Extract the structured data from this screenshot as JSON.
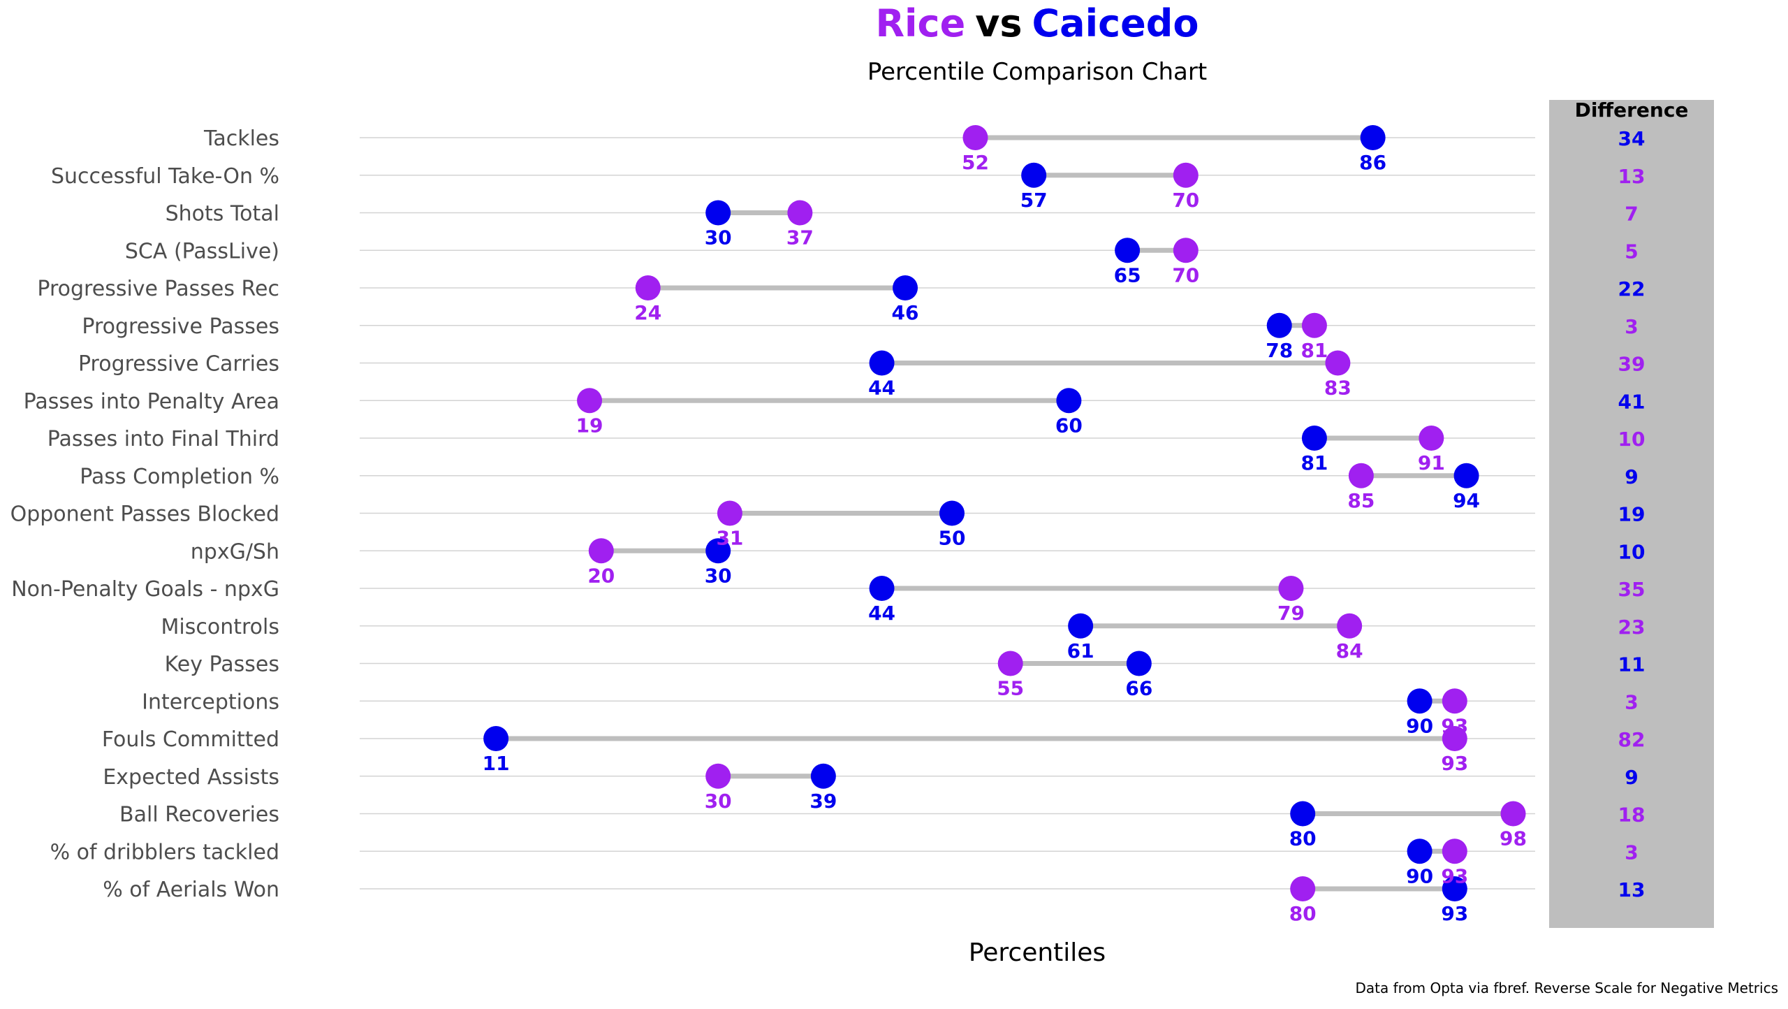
{
  "title": {
    "player_a": "Rice",
    "vs": "vs",
    "player_b": "Caicedo"
  },
  "subtitle": "Percentile Comparison Chart",
  "xlabel": "Percentiles",
  "diff_header": "Difference",
  "caption": "Data from Opta via fbref. Reverse Scale for Negative Metrics",
  "colors": {
    "player_a": "#a020f0",
    "player_b": "#0000ee",
    "connector": "#bebebe",
    "diff_panel": "#bebebe",
    "gridline": "#d3d3d3",
    "axis_text": "#4d4d4d"
  },
  "chart_data": {
    "type": "dumbbell",
    "xlim": [
      0,
      100
    ],
    "series": [
      {
        "name": "Rice",
        "color_key": "player_a"
      },
      {
        "name": "Caicedo",
        "color_key": "player_b"
      }
    ],
    "rows": [
      {
        "metric": "Tackles",
        "rice": 52,
        "caicedo": 86,
        "difference": 34
      },
      {
        "metric": "Successful Take-On %",
        "rice": 70,
        "caicedo": 57,
        "difference": 13
      },
      {
        "metric": "Shots Total",
        "rice": 37,
        "caicedo": 30,
        "difference": 7
      },
      {
        "metric": "SCA (PassLive)",
        "rice": 70,
        "caicedo": 65,
        "difference": 5
      },
      {
        "metric": "Progressive Passes Rec",
        "rice": 24,
        "caicedo": 46,
        "difference": 22
      },
      {
        "metric": "Progressive Passes",
        "rice": 81,
        "caicedo": 78,
        "difference": 3
      },
      {
        "metric": "Progressive Carries",
        "rice": 83,
        "caicedo": 44,
        "difference": 39
      },
      {
        "metric": "Passes into Penalty Area",
        "rice": 19,
        "caicedo": 60,
        "difference": 41
      },
      {
        "metric": "Passes into Final Third",
        "rice": 91,
        "caicedo": 81,
        "difference": 10
      },
      {
        "metric": "Pass Completion %",
        "rice": 85,
        "caicedo": 94,
        "difference": 9
      },
      {
        "metric": "Opponent Passes Blocked",
        "rice": 31,
        "caicedo": 50,
        "difference": 19
      },
      {
        "metric": "npxG/Sh",
        "rice": 20,
        "caicedo": 30,
        "difference": 10
      },
      {
        "metric": "Non-Penalty Goals - npxG",
        "rice": 79,
        "caicedo": 44,
        "difference": 35
      },
      {
        "metric": "Miscontrols",
        "rice": 84,
        "caicedo": 61,
        "difference": 23
      },
      {
        "metric": "Key Passes",
        "rice": 55,
        "caicedo": 66,
        "difference": 11
      },
      {
        "metric": "Interceptions",
        "rice": 93,
        "caicedo": 90,
        "difference": 3
      },
      {
        "metric": "Fouls Committed",
        "rice": 93,
        "caicedo": 11,
        "difference": 82
      },
      {
        "metric": "Expected Assists",
        "rice": 30,
        "caicedo": 39,
        "difference": 9
      },
      {
        "metric": "Ball Recoveries",
        "rice": 98,
        "caicedo": 80,
        "difference": 18
      },
      {
        "metric": "% of dribblers tackled",
        "rice": 93,
        "caicedo": 90,
        "difference": 3
      },
      {
        "metric": "% of Aerials Won",
        "rice": 80,
        "caicedo": 93,
        "difference": 13
      }
    ]
  }
}
